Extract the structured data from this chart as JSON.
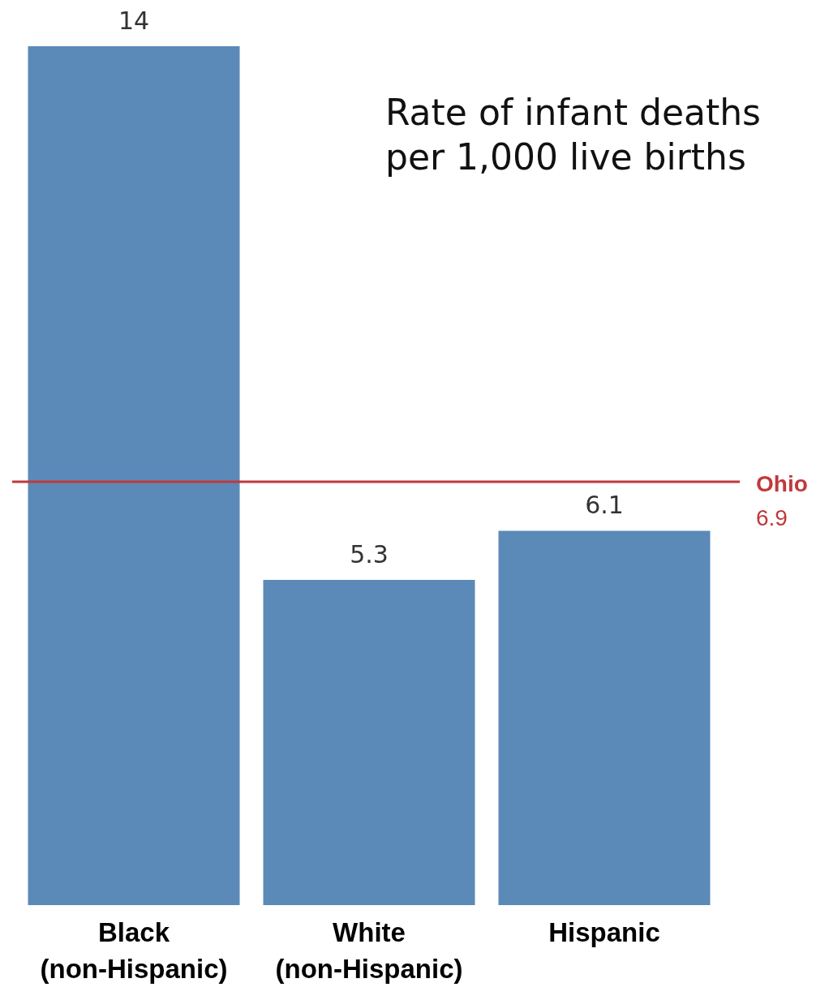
{
  "chart_data": {
    "type": "bar",
    "title": "Rate of infant deaths per 1,000 live births",
    "categories": [
      "Black\n(non-Hispanic)",
      "White\n(non-Hispanic)",
      "Hispanic"
    ],
    "values": [
      14,
      5.3,
      6.1
    ],
    "color": "#5b8ab8",
    "data_labels": true,
    "ylim": [
      0,
      14
    ],
    "tick_labels": "x",
    "grid": false,
    "legend": false,
    "ref_lines": [
      {
        "axis": "y",
        "value": 6.9,
        "label": "Ohio\n6.9",
        "color": "#c0393b"
      }
    ]
  }
}
